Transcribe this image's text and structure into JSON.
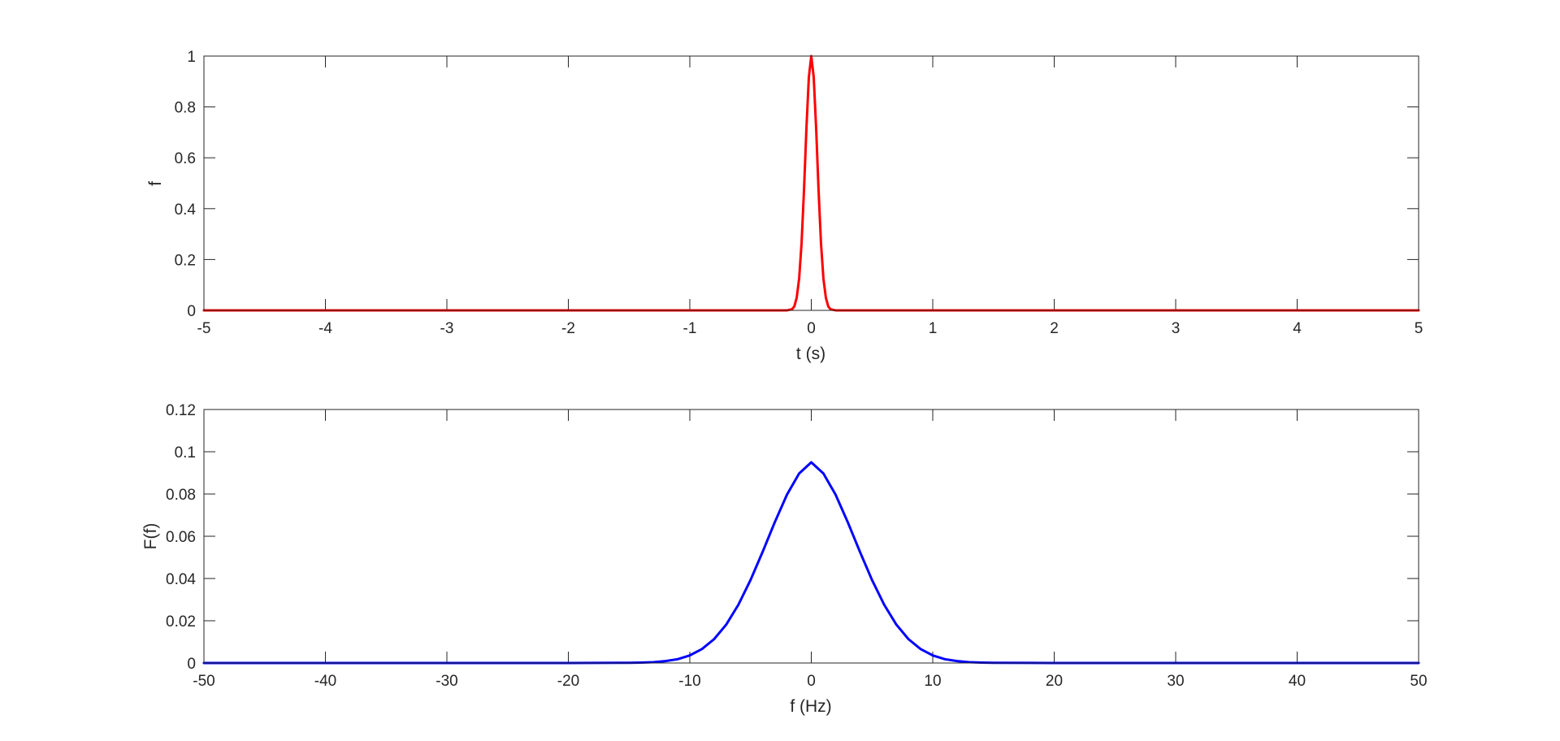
{
  "chart_data": [
    {
      "type": "line",
      "title": "",
      "xlabel": "t (s)",
      "ylabel": "f",
      "xlim": [
        -5,
        5
      ],
      "ylim": [
        0,
        1
      ],
      "xticks": [
        -5,
        -4,
        -3,
        -2,
        -1,
        0,
        1,
        2,
        3,
        4,
        5
      ],
      "yticks": [
        0,
        0.2,
        0.4,
        0.6,
        0.8,
        1
      ],
      "xtick_labels": [
        "-5",
        "-4",
        "-3",
        "-2",
        "-1",
        "0",
        "1",
        "2",
        "3",
        "4",
        "5"
      ],
      "ytick_labels": [
        "0",
        "0.2",
        "0.4",
        "0.6",
        "0.8",
        "1"
      ],
      "grid": false,
      "color": "#ff0000",
      "series": [
        {
          "x": [
            -5,
            -1,
            -0.2,
            -0.16,
            -0.14,
            -0.12,
            -0.1,
            -0.08,
            -0.06,
            -0.04,
            -0.02,
            0,
            0.02,
            0.04,
            0.06,
            0.08,
            0.1,
            0.12,
            0.14,
            0.16,
            0.2,
            1,
            5
          ],
          "values": [
            0,
            0,
            0.0002,
            0.004,
            0.015,
            0.05,
            0.125,
            0.264,
            0.472,
            0.716,
            0.917,
            1,
            0.917,
            0.716,
            0.472,
            0.264,
            0.125,
            0.05,
            0.015,
            0.004,
            0.0002,
            0,
            0
          ]
        }
      ]
    },
    {
      "type": "line",
      "title": "",
      "xlabel": "f (Hz)",
      "ylabel": "F(f)",
      "xlim": [
        -50,
        50
      ],
      "ylim": [
        0,
        0.12
      ],
      "xticks": [
        -50,
        -40,
        -30,
        -20,
        -10,
        0,
        10,
        20,
        30,
        40,
        50
      ],
      "yticks": [
        0,
        0.02,
        0.04,
        0.06,
        0.08,
        0.1,
        0.12
      ],
      "xtick_labels": [
        "-50",
        "-40",
        "-30",
        "-20",
        "-10",
        "0",
        "10",
        "20",
        "30",
        "40",
        "50"
      ],
      "ytick_labels": [
        "0",
        "0.02",
        "0.04",
        "0.06",
        "0.08",
        "0.1",
        "0.12"
      ],
      "grid": false,
      "color": "#0000ff",
      "series": [
        {
          "x": [
            -50,
            -20,
            -15,
            -14,
            -13,
            -12,
            -11,
            -10,
            -9,
            -8,
            -7,
            -6,
            -5,
            -4,
            -3,
            -2,
            -1,
            0,
            1,
            2,
            3,
            4,
            5,
            6,
            7,
            8,
            9,
            10,
            11,
            12,
            13,
            14,
            15,
            20,
            50
          ],
          "values": [
            0,
            0,
            0.0001,
            0.0002,
            0.0004,
            0.0009,
            0.0018,
            0.0036,
            0.0066,
            0.0113,
            0.0182,
            0.0276,
            0.0393,
            0.0527,
            0.0667,
            0.0797,
            0.0897,
            0.095,
            0.0897,
            0.0797,
            0.0667,
            0.0527,
            0.0393,
            0.0276,
            0.0182,
            0.0113,
            0.0066,
            0.0036,
            0.0018,
            0.0009,
            0.0004,
            0.0002,
            0.0001,
            0,
            0
          ]
        }
      ]
    }
  ]
}
